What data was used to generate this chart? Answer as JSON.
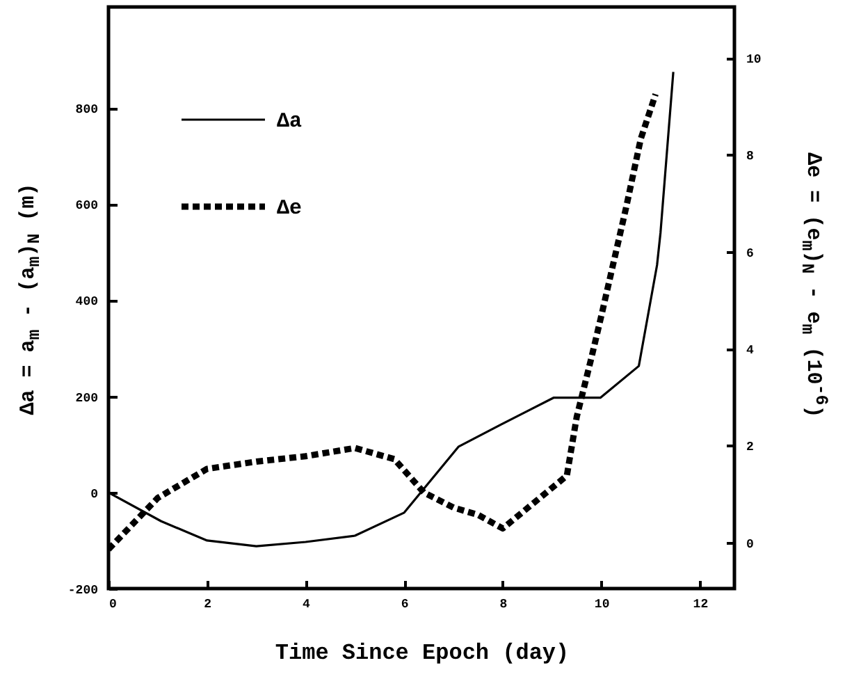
{
  "chart_data": {
    "type": "line",
    "xlabel": "Time Since Epoch (day)",
    "ylabel": "Δa = a$_{m}$ - (a$_{m}$)$_{N}$ (m)",
    "y2label": "Δe = (e$_{m}$)$_{N}$ - e$_{m}$ (10$^{-6}$)",
    "xlim": [
      0,
      12.7
    ],
    "xticks": [
      0,
      2,
      4,
      6,
      8,
      10,
      12
    ],
    "ylim": [
      -200,
      1010
    ],
    "yticks": [
      -200,
      0,
      200,
      400,
      600,
      800
    ],
    "y2lim": [
      -0.95,
      11.05
    ],
    "y2ticks": [
      0,
      2,
      4,
      6,
      8,
      10
    ],
    "grid": false,
    "legend": "top left",
    "marker": "none",
    "series": [
      {
        "name": "Δa",
        "color": "#000000",
        "line_style": "solid",
        "x": [
          0,
          1.07,
          2,
          3,
          4,
          5,
          6,
          7.1,
          7.96,
          9.03,
          9.98,
          10.76,
          11.13,
          11.2,
          11.46
        ],
        "values": [
          0,
          -60,
          -100,
          -112,
          -103,
          -90,
          -42,
          95,
          141,
          197,
          197,
          263,
          473,
          540,
          875
        ]
      },
      {
        "name": "Δe",
        "color": "#000000",
        "line_style": "dotted",
        "axis": "y2",
        "x": [
          0,
          1,
          2,
          3,
          4,
          5,
          5.8,
          6.4,
          7,
          7.5,
          8,
          9.3,
          9.5,
          9.8,
          10,
          10.5,
          10.8,
          11.1
        ],
        "values": [
          -0.14,
          0.92,
          1.52,
          1.67,
          1.78,
          1.95,
          1.72,
          1.03,
          0.72,
          0.57,
          0.29,
          1.38,
          2.59,
          3.82,
          4.68,
          6.9,
          8.33,
          9.25
        ]
      }
    ]
  }
}
